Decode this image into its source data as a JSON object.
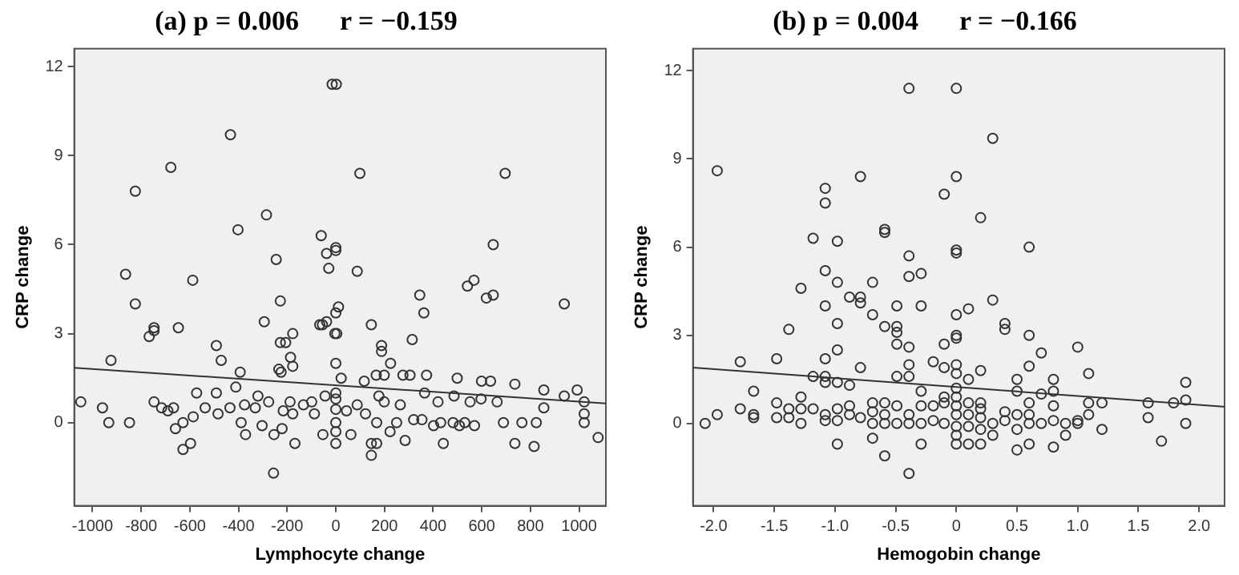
{
  "chart_data": [
    {
      "type": "scatter",
      "title": "(a) p = 0.006      r = −0.159",
      "xlabel": "Lymphocyte change",
      "ylabel": "CRP change",
      "xlim": [
        -1075,
        1110
      ],
      "ylim": [
        -2.8,
        12.6
      ],
      "xticks": [
        -1000,
        -800,
        -600,
        -400,
        -200,
        0,
        200,
        400,
        600,
        800,
        1000
      ],
      "yticks": [
        0,
        3,
        6,
        9,
        12
      ],
      "grid": false,
      "legend": false,
      "series": [
        {
          "type": "scatter",
          "marker": "circle",
          "color": "#333333",
          "x": [
            -15,
            2,
            -433,
            -678,
            99,
            696,
            -824,
            -285,
            -402,
            -60,
            647,
            0,
            0,
            -38,
            -245,
            -29,
            88,
            -864,
            -588,
            568,
            541,
            345,
            647,
            619,
            -228,
            -824,
            939,
            11,
            0,
            362,
            -294,
            -38,
            -66,
            -55,
            146,
            -747,
            -747,
            -647,
            -767,
            -177,
            -4,
            4,
            314,
            -228,
            -206,
            188,
            188,
            -491,
            -186,
            -924,
            -471,
            0,
            225,
            -177,
            -234,
            -225,
            -393,
            499,
            22,
            166,
            199,
            276,
            305,
            373,
            117,
            599,
            636,
            736,
            992,
            855,
            -411,
            -572,
            -491,
            365,
            -1048,
            -747,
            -959,
            -716,
            -690,
            -667,
            -537,
            -484,
            -435,
            -933,
            -848,
            -659,
            -628,
            -628,
            -597,
            -586,
            -389,
            -371,
            -303,
            -254,
            -221,
            -256,
            -168,
            -53,
            0,
            0,
            0,
            0,
            0,
            0,
            62,
            146,
            146,
            168,
            223,
            285,
            442,
            736,
            815,
            1078,
            1021,
            1021,
            1021,
            939,
            765,
            824,
            855,
            689,
            570,
            530,
            508,
            482,
            431,
            402,
            354,
            320,
            250,
            168,
            122,
            88,
            44,
            -88,
            -133,
            -177,
            -216,
            -331,
            -375,
            -99,
            -44,
            199,
            265,
            420,
            486,
            552,
            597,
            663,
            -320,
            -276,
            -188,
            177
          ],
          "values": [
            11.4,
            11.4,
            9.7,
            8.6,
            8.4,
            8.4,
            7.8,
            7.0,
            6.5,
            6.3,
            6.0,
            5.9,
            5.8,
            5.7,
            5.5,
            5.2,
            5.1,
            5.0,
            4.8,
            4.8,
            4.6,
            4.3,
            4.3,
            4.2,
            4.1,
            4.0,
            4.0,
            3.9,
            3.7,
            3.7,
            3.4,
            3.4,
            3.3,
            3.3,
            3.3,
            3.2,
            3.1,
            3.2,
            2.9,
            3.0,
            3.0,
            3.0,
            2.8,
            2.7,
            2.7,
            2.6,
            2.4,
            2.6,
            2.2,
            2.1,
            2.1,
            2.0,
            2.0,
            1.9,
            1.8,
            1.7,
            1.7,
            1.5,
            1.5,
            1.6,
            1.6,
            1.6,
            1.6,
            1.6,
            1.4,
            1.4,
            1.4,
            1.3,
            1.1,
            1.1,
            1.2,
            1.0,
            1.0,
            1.0,
            0.7,
            0.7,
            0.5,
            0.5,
            0.4,
            0.5,
            0.5,
            0.3,
            0.5,
            0,
            0,
            -0.2,
            0,
            -0.9,
            -0.7,
            0.2,
            0,
            -0.4,
            -0.1,
            -0.4,
            -0.2,
            -1.7,
            -0.7,
            -0.4,
            -0.7,
            -0.3,
            0,
            0.45,
            0.8,
            1.0,
            -0.4,
            -1.1,
            -0.7,
            -0.7,
            -0.3,
            -0.6,
            -0.7,
            -0.7,
            -0.8,
            -0.5,
            0,
            0.3,
            0.7,
            0.9,
            0,
            0,
            0.5,
            0,
            -0.1,
            0,
            -0.1,
            0,
            0,
            -0.1,
            0.1,
            0.1,
            0,
            0,
            0.3,
            0.6,
            0.4,
            0.3,
            0.6,
            0.3,
            0.4,
            0.5,
            0.6,
            0.7,
            0.9,
            0.7,
            0.6,
            0.7,
            0.9,
            0.7,
            0.8,
            0.7,
            0.9,
            0.7,
            0.7,
            0.9
          ]
        },
        {
          "type": "line",
          "marker": "none",
          "color": "#333333",
          "x": [
            -1075,
            1110
          ],
          "values": [
            1.85,
            0.65
          ]
        }
      ]
    },
    {
      "type": "scatter",
      "title": "(b) p = 0.004      r = −0.166",
      "xlabel": "Hemogobin change",
      "ylabel": "CRP change",
      "xlim": [
        -2.17,
        2.21
      ],
      "ylim": [
        -2.8,
        12.75
      ],
      "xticks": [
        {
          "value": -2,
          "label": "-2.0"
        },
        -1.5,
        {
          "value": -1,
          "label": "-1.0"
        },
        -0.5,
        0,
        0.5,
        {
          "value": 1,
          "label": "1.0"
        },
        1.5,
        {
          "value": 2,
          "label": "2.0"
        }
      ],
      "yticks": [
        0,
        3,
        6,
        9,
        12
      ],
      "grid": false,
      "legend": false,
      "series": [
        {
          "type": "scatter",
          "marker": "circle",
          "color": "#333333",
          "x": [
            -0.39,
            0,
            0.3,
            -1.97,
            -0.79,
            0,
            -1.08,
            -1.08,
            -0.1,
            0.2,
            -0.59,
            -0.59,
            -1.18,
            -0.98,
            0.6,
            0,
            0,
            -0.39,
            -1.08,
            -0.29,
            -0.39,
            -0.98,
            -0.69,
            -1.28,
            -0.88,
            -0.79,
            -0.79,
            0.3,
            -1.08,
            -0.49,
            -0.29,
            0.1,
            -0.69,
            0,
            0.4,
            0.4,
            -0.98,
            -0.59,
            -0.49,
            -1.38,
            -0.49,
            0,
            0,
            0.6,
            -0.1,
            -0.49,
            -0.39,
            1.0,
            -0.98,
            0.7,
            -1.48,
            -1.08,
            -1.78,
            -0.19,
            -0.39,
            0,
            0.6,
            -0.79,
            -0.1,
            0.2,
            1.09,
            0,
            -1.18,
            -1.08,
            -0.49,
            -0.39,
            0.5,
            0.8,
            1.89,
            -1.08,
            -0.98,
            0.1,
            -0.88,
            -1.67,
            -0.29,
            0.8,
            0.5,
            0.7,
            -1.28,
            -0.1,
            0.9,
            1.09,
            1.2,
            1.58,
            1.79,
            1.89,
            1.89,
            1.58,
            1.69,
            1.2,
            1.0,
            0.9,
            0.8,
            0.5,
            0.6,
            0.5,
            0.3,
            0.2,
            0.1,
            0,
            0,
            0,
            0,
            0,
            0,
            0,
            -0.29,
            -0.39,
            -0.59,
            -0.69,
            -0.98,
            -2.07,
            -1.97,
            -1.78,
            -1.67,
            -1.67,
            -1.48,
            -1.48,
            -1.38,
            -1.38,
            -1.28,
            -1.28,
            -1.18,
            -1.08,
            -1.08,
            -0.98,
            -0.98,
            -0.88,
            -0.88,
            -0.79,
            -0.69,
            -0.69,
            -0.69,
            -0.59,
            -0.59,
            -0.59,
            -0.49,
            -0.49,
            -0.39,
            -0.39,
            -0.29,
            -0.29,
            -0.19,
            -0.19,
            -0.1,
            -0.1,
            0.1,
            0.1,
            0.1,
            0.2,
            0.2,
            0.2,
            0.2,
            0.3,
            0.4,
            0.4,
            0.5,
            0.6,
            0.6,
            0.6,
            0.7,
            0.8,
            0.8,
            1.0,
            1.09
          ],
          "values": [
            11.4,
            11.4,
            9.7,
            8.6,
            8.4,
            8.4,
            8.0,
            7.5,
            7.8,
            7.0,
            6.6,
            6.5,
            6.3,
            6.2,
            6.0,
            5.9,
            5.8,
            5.7,
            5.2,
            5.1,
            5.0,
            4.8,
            4.8,
            4.6,
            4.3,
            4.3,
            4.1,
            4.2,
            4.0,
            4.0,
            4.0,
            3.9,
            3.7,
            3.7,
            3.4,
            3.2,
            3.4,
            3.3,
            3.3,
            3.2,
            3.1,
            3.0,
            2.9,
            3.0,
            2.7,
            2.7,
            2.6,
            2.6,
            2.5,
            2.4,
            2.2,
            2.2,
            2.1,
            2.1,
            2.0,
            2.0,
            1.95,
            1.9,
            1.9,
            1.8,
            1.7,
            1.7,
            1.6,
            1.6,
            1.6,
            1.6,
            1.5,
            1.5,
            1.4,
            1.4,
            1.4,
            1.5,
            1.3,
            1.1,
            1.1,
            1.1,
            1.1,
            1.0,
            0.9,
            0.9,
            0,
            0.7,
            0.7,
            0.7,
            0.7,
            0.8,
            0,
            0.2,
            -0.6,
            -0.2,
            0.1,
            -0.4,
            -0.8,
            -0.9,
            -0.7,
            -0.2,
            -0.4,
            -0.7,
            -0.7,
            -0.7,
            -0.4,
            -0.1,
            0.3,
            0.6,
            0.9,
            1.2,
            -0.7,
            -1.7,
            -1.1,
            -0.5,
            -0.7,
            0,
            0.3,
            0.5,
            0.3,
            0.2,
            0.7,
            0.2,
            0.5,
            0.2,
            0,
            0.5,
            0.5,
            0.1,
            0.3,
            0.1,
            0.5,
            0.3,
            0.6,
            0.2,
            0,
            0.4,
            0.7,
            0,
            0.3,
            0.7,
            0,
            0.6,
            0,
            0.3,
            0.6,
            0,
            0.1,
            0.6,
            0,
            0.7,
            -0.1,
            0.3,
            0.7,
            -0.2,
            0.2,
            0.5,
            0.7,
            0,
            0.1,
            0.4,
            0.3,
            0,
            0.3,
            0.7,
            0,
            0.1,
            0.6,
            0,
            0.3
          ]
        },
        {
          "type": "line",
          "marker": "none",
          "color": "#333333",
          "x": [
            -2.17,
            2.21
          ],
          "values": [
            1.9,
            0.57
          ]
        }
      ]
    }
  ]
}
